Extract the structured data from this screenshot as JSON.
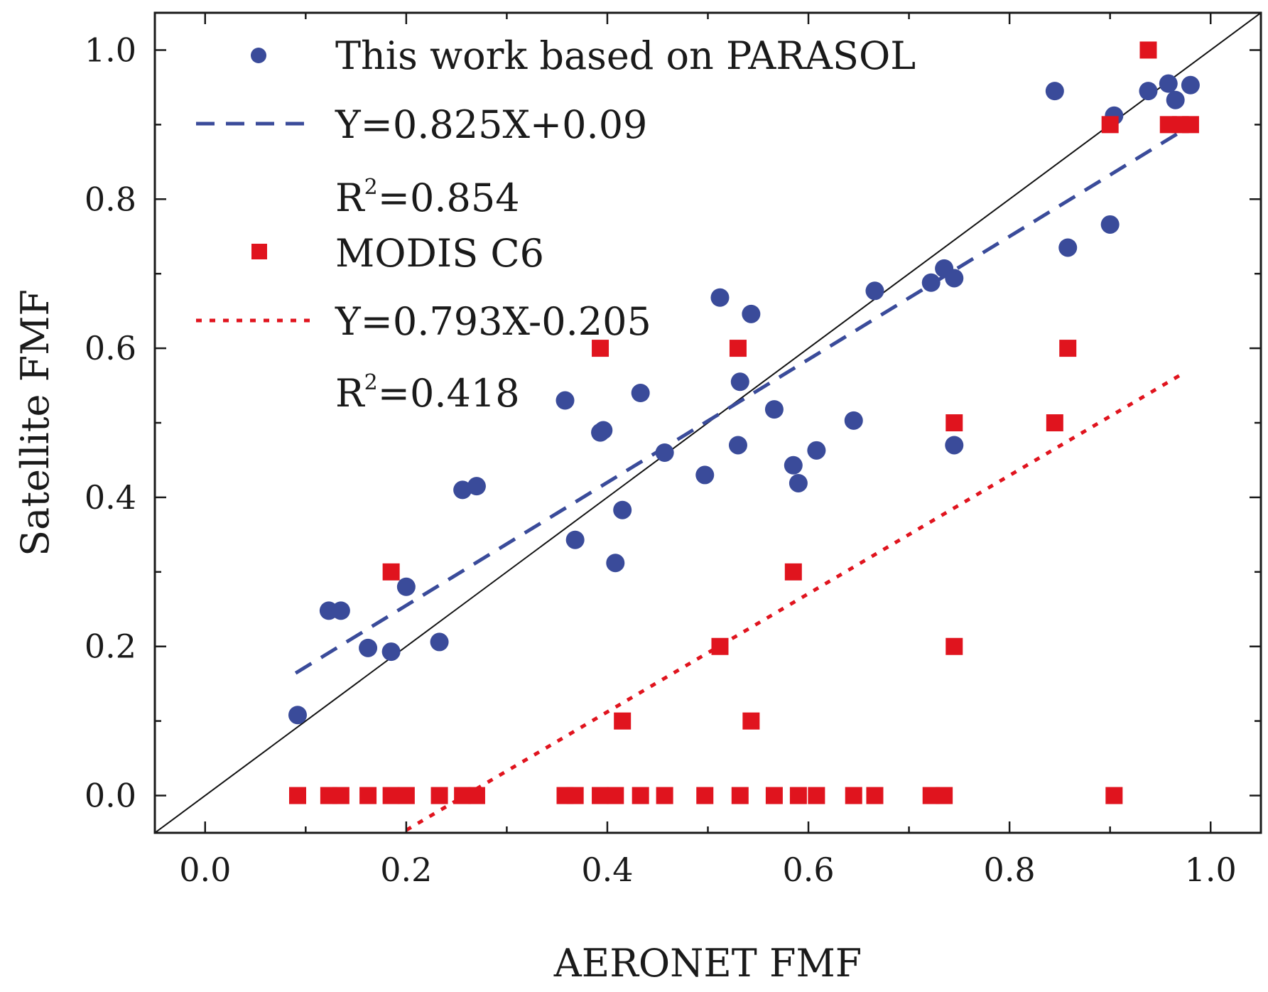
{
  "chart_data": {
    "type": "scatter",
    "xlabel": "AERONET FMF",
    "ylabel": "Satellite FMF",
    "xlim": [
      -0.05,
      1.05
    ],
    "ylim": [
      -0.05,
      1.05
    ],
    "x_ticks": [
      "0.0",
      "0.2",
      "0.4",
      "0.6",
      "0.8",
      "1.0"
    ],
    "y_ticks": [
      "0.0",
      "0.2",
      "0.4",
      "0.6",
      "0.8",
      "1.0"
    ],
    "x_tick_values": [
      0.0,
      0.2,
      0.4,
      0.6,
      0.8,
      1.0
    ],
    "y_tick_values": [
      0.0,
      0.2,
      0.4,
      0.6,
      0.8,
      1.0
    ],
    "minor_tick_values": [
      0.1,
      0.3,
      0.5,
      0.7,
      0.9
    ],
    "legend_position": "top-left",
    "series": [
      {
        "name": "This work based on PARASOL",
        "marker": "circle",
        "color": "#3a4b9a",
        "x": [
          0.092,
          0.123,
          0.135,
          0.162,
          0.185,
          0.2,
          0.233,
          0.256,
          0.27,
          0.358,
          0.368,
          0.393,
          0.396,
          0.408,
          0.415,
          0.433,
          0.457,
          0.497,
          0.512,
          0.53,
          0.532,
          0.543,
          0.566,
          0.585,
          0.59,
          0.608,
          0.645,
          0.666,
          0.722,
          0.735,
          0.745,
          0.745,
          0.845,
          0.858,
          0.9,
          0.904,
          0.938,
          0.958,
          0.965,
          0.98
        ],
        "y": [
          0.108,
          0.248,
          0.248,
          0.198,
          0.193,
          0.28,
          0.206,
          0.41,
          0.415,
          0.53,
          0.343,
          0.487,
          0.49,
          0.312,
          0.383,
          0.54,
          0.46,
          0.43,
          0.668,
          0.47,
          0.555,
          0.646,
          0.518,
          0.443,
          0.419,
          0.463,
          0.503,
          0.677,
          0.688,
          0.707,
          0.694,
          0.47,
          0.945,
          0.735,
          0.766,
          0.912,
          0.945,
          0.955,
          0.933,
          0.953
        ]
      },
      {
        "name": "MODIS C6",
        "marker": "square",
        "color": "#e0141e",
        "x": [
          0.092,
          0.123,
          0.135,
          0.162,
          0.185,
          0.2,
          0.233,
          0.256,
          0.27,
          0.358,
          0.368,
          0.393,
          0.408,
          0.433,
          0.457,
          0.497,
          0.532,
          0.566,
          0.59,
          0.608,
          0.645,
          0.666,
          0.722,
          0.735,
          0.904,
          0.185,
          0.393,
          0.53,
          0.415,
          0.512,
          0.543,
          0.585,
          0.745,
          0.745,
          0.845,
          0.858,
          0.9,
          0.938,
          0.958,
          0.97,
          0.98
        ],
        "y": [
          0.0,
          0.0,
          0.0,
          0.0,
          0.0,
          0.0,
          0.0,
          0.0,
          0.0,
          0.0,
          0.0,
          0.0,
          0.0,
          0.0,
          0.0,
          0.0,
          0.0,
          0.0,
          0.0,
          0.0,
          0.0,
          0.0,
          0.0,
          0.0,
          0.0,
          0.3,
          0.6,
          0.6,
          0.1,
          0.2,
          0.1,
          0.3,
          0.5,
          0.2,
          0.5,
          0.6,
          0.9,
          1.0,
          0.9,
          0.9,
          0.9
        ]
      }
    ],
    "fit_lines": [
      {
        "name": "Y=0.825X+0.09",
        "r2_label": "R",
        "r2_sup": "2",
        "r2_value": "=0.854",
        "slope": 0.825,
        "intercept": 0.09,
        "x_range": [
          0.09,
          0.975
        ],
        "style": "dashed",
        "color": "#3a4b9a"
      },
      {
        "name": "Y=0.793X-0.205",
        "r2_label": "R",
        "r2_sup": "2",
        "r2_value": "=0.418",
        "slope": 0.793,
        "intercept": -0.205,
        "x_range": [
          0.2,
          0.97
        ],
        "style": "dotted",
        "color": "#e0141e"
      }
    ],
    "reference_line": {
      "name": "1:1 line",
      "color": "#111111"
    }
  }
}
